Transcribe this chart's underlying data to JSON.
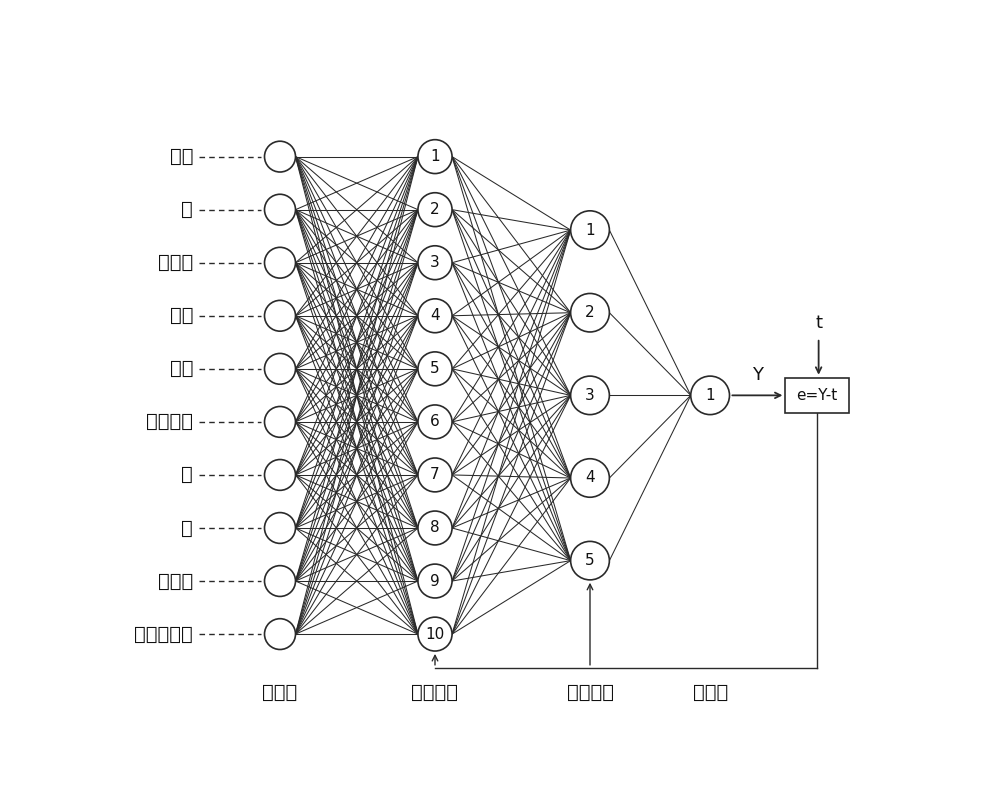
{
  "input_labels": [
    "水泥",
    "水",
    "粉煤灰",
    "矿渣",
    "硅粉",
    "石灰石粉",
    "砂",
    "石",
    "增粘剂",
    "高效减水剂"
  ],
  "layer1_count": 10,
  "layer2_count": 5,
  "output_count": 1,
  "layer_labels": [
    "输入层",
    "第一隐层",
    "第二隐层",
    "输出层"
  ],
  "output_box_label": "e=Y-t",
  "output_y_label": "Y",
  "t_label": "t",
  "bg_color": "#ffffff",
  "line_color": "#2a2a2a",
  "node_facecolor": "#ffffff",
  "node_edgecolor": "#2a2a2a",
  "text_color": "#111111",
  "font_size_node": 11,
  "font_size_label": 14,
  "font_size_input": 14
}
